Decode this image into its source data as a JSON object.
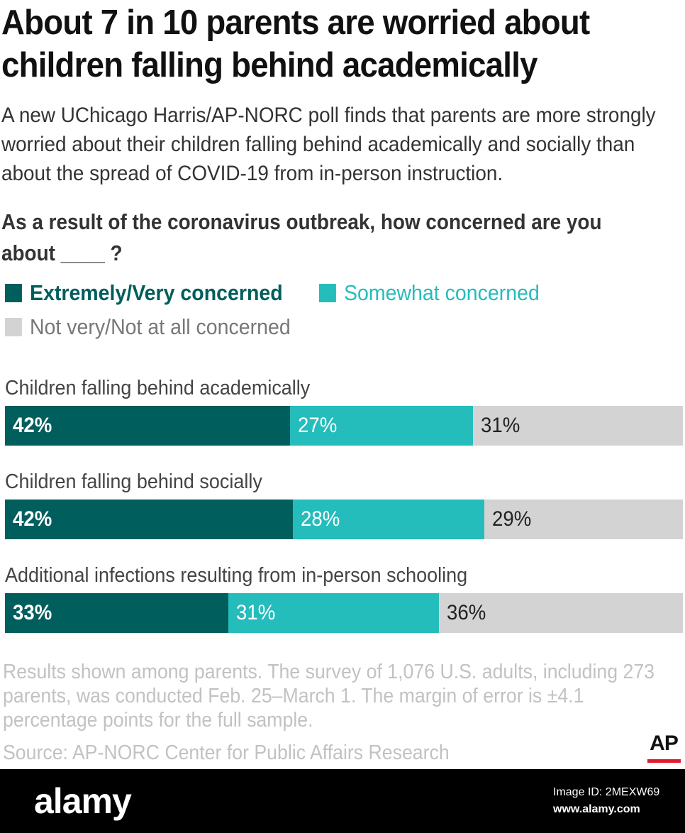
{
  "title": "About 7 in 10 parents are worried about children falling behind academically",
  "subtitle": "A new UChicago Harris/AP-NORC poll finds that parents are more strongly worried about their children falling behind academically and socially than about the spread of COVID-19 from in-person instruction.",
  "question": "As a result of the coronavirus outbreak, how concerned are you about ____ ?",
  "chart_data": {
    "type": "bar",
    "orientation": "horizontal",
    "stacked": true,
    "unit": "%",
    "categories": [
      "Children falling behind academically",
      "Children falling behind socially",
      "Additional infections resulting from in-person schooling"
    ],
    "series": [
      {
        "name": "Extremely/Very concerned",
        "color": "#005e5d",
        "label_color": "#ffffff",
        "values": [
          42,
          42,
          33
        ],
        "labels": [
          "42%",
          "42%",
          "33%"
        ]
      },
      {
        "name": "Somewhat concerned",
        "color": "#25bcbc",
        "label_color": "#ffffff",
        "values": [
          27,
          28,
          31
        ],
        "labels": [
          "27%",
          "28%",
          "31%"
        ]
      },
      {
        "name": "Not very/Not at all concerned",
        "color": "#d3d3d3",
        "label_color": "#222222",
        "values": [
          31,
          29,
          36
        ],
        "labels": [
          "31%",
          "29%",
          "36%"
        ]
      }
    ],
    "legend_placement": "top-left",
    "grid": false
  },
  "legend_text_colors": [
    "#005e5d",
    "#25bcbc",
    "#777777"
  ],
  "notes": "Results shown among parents. The survey of 1,076 U.S. adults, including 273 parents, was conducted Feb. 25–March 1. The margin of error is ±4.1 percentage points for the full sample.",
  "source": "Source: AP-NORC Center for Public Affairs Research",
  "logo": "AP",
  "footer": {
    "brand": "alamy",
    "image_id": "Image ID: 2MEXW69",
    "url": "www.alamy.com"
  }
}
